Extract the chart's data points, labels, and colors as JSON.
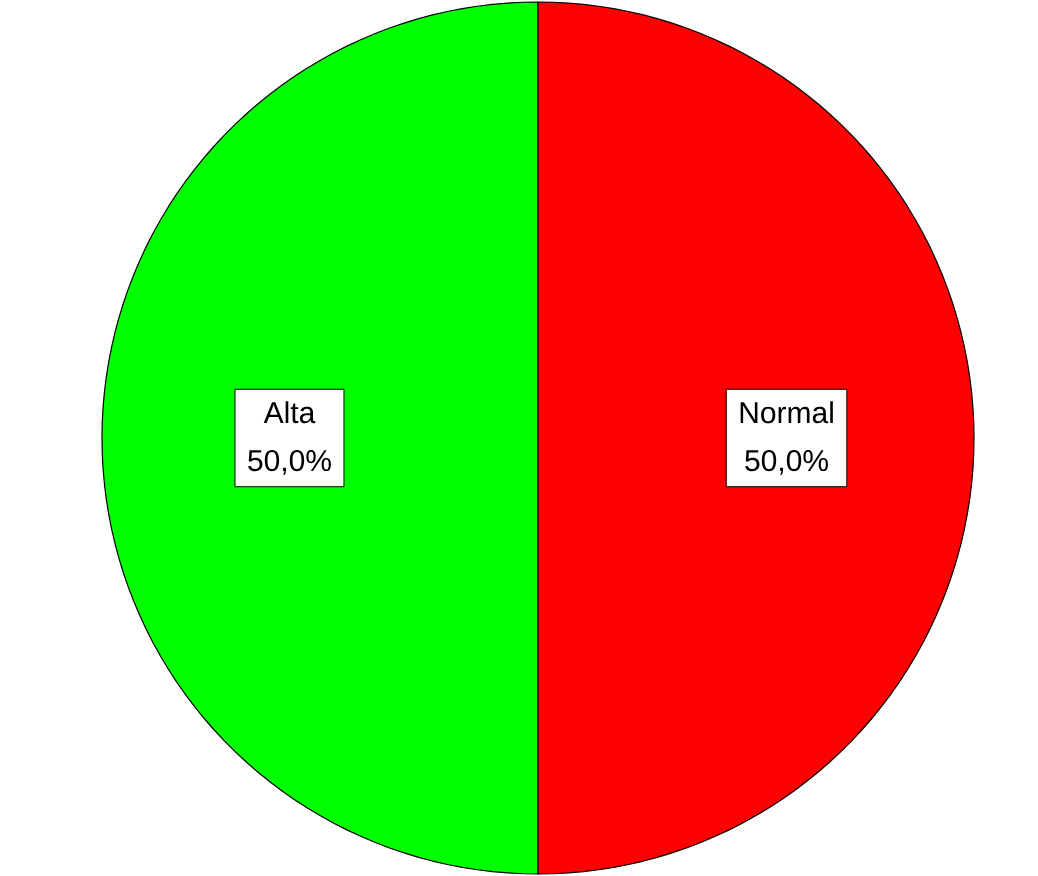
{
  "chart_data": {
    "type": "pie",
    "categories": [
      "Alta",
      "Normal"
    ],
    "values": [
      50,
      50
    ],
    "colors": [
      "#00ff00",
      "#ff0000"
    ],
    "value_labels": [
      "50,0%",
      "50,0%"
    ]
  }
}
